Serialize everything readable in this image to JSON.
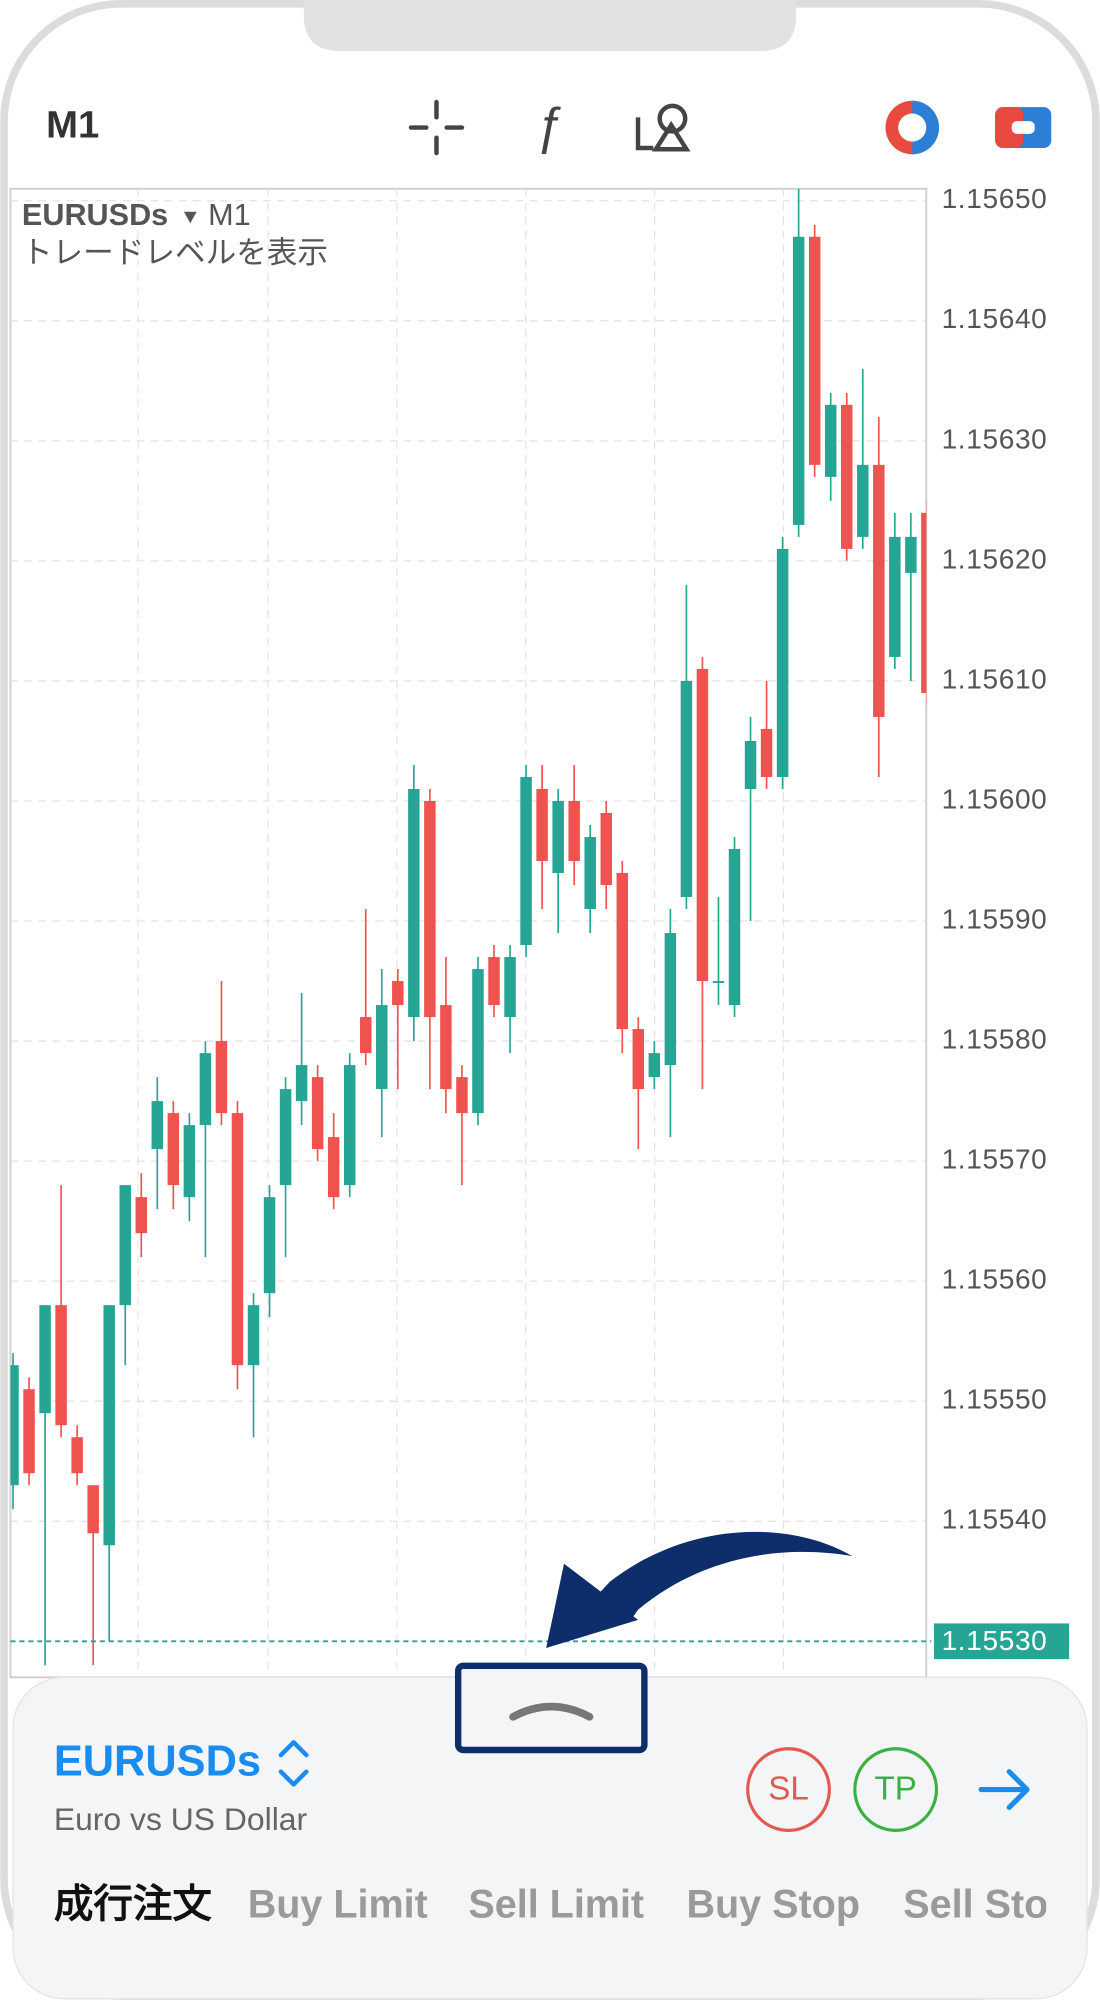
{
  "toolbar": {
    "timeframe": "M1"
  },
  "chart_header": {
    "symbol": "EURUSDs",
    "timeframe": "M1",
    "note": "トレードレベルを表示"
  },
  "chart_data": {
    "type": "candlestick",
    "open": [
      1.15543,
      1.15551,
      1.15549,
      1.15558,
      1.15547,
      1.15543,
      1.15538,
      1.15558,
      1.15567,
      1.15571,
      1.15574,
      1.15567,
      1.15573,
      1.1558,
      1.15574,
      1.15553,
      1.15559,
      1.15568,
      1.15575,
      1.15577,
      1.15572,
      1.15568,
      1.15582,
      1.15576,
      1.15585,
      1.15582,
      1.156,
      1.15583,
      1.15577,
      1.15574,
      1.15587,
      1.15582,
      1.15588,
      1.15601,
      1.15594,
      1.156,
      1.15591,
      1.15599,
      1.15594,
      1.15581,
      1.15577,
      1.15578,
      1.15592,
      1.15611,
      1.15585,
      1.15583,
      1.15601,
      1.15606,
      1.15602,
      1.15623,
      1.15647,
      1.15627,
      1.15633,
      1.15622,
      1.15628,
      1.15612,
      1.15619,
      1.15624
    ],
    "high": [
      1.15554,
      1.15552,
      1.15558,
      1.15568,
      1.15548,
      1.15543,
      1.15558,
      1.15568,
      1.15569,
      1.15577,
      1.15575,
      1.15574,
      1.1558,
      1.15585,
      1.15575,
      1.15559,
      1.15568,
      1.15577,
      1.15584,
      1.15578,
      1.15574,
      1.15579,
      1.15591,
      1.15586,
      1.15586,
      1.15603,
      1.15601,
      1.15587,
      1.15578,
      1.15587,
      1.15588,
      1.15588,
      1.15603,
      1.15603,
      1.15601,
      1.15603,
      1.15598,
      1.156,
      1.15595,
      1.15582,
      1.1558,
      1.15591,
      1.15618,
      1.15612,
      1.15592,
      1.15597,
      1.15607,
      1.1561,
      1.15622,
      1.15651,
      1.15648,
      1.15634,
      1.15634,
      1.15636,
      1.15632,
      1.15624,
      1.15624,
      1.15625
    ],
    "low": [
      1.15541,
      1.15543,
      1.15528,
      1.15547,
      1.15543,
      1.15528,
      1.1553,
      1.15553,
      1.15562,
      1.15566,
      1.15566,
      1.15565,
      1.15562,
      1.15573,
      1.15551,
      1.15547,
      1.15557,
      1.15562,
      1.15573,
      1.1557,
      1.15566,
      1.15567,
      1.15578,
      1.15572,
      1.15576,
      1.1558,
      1.15576,
      1.15574,
      1.15568,
      1.15573,
      1.15582,
      1.15579,
      1.15587,
      1.15591,
      1.15589,
      1.15593,
      1.15589,
      1.15591,
      1.15579,
      1.15571,
      1.15576,
      1.15572,
      1.15591,
      1.15576,
      1.15583,
      1.15582,
      1.1559,
      1.15601,
      1.15601,
      1.15622,
      1.15627,
      1.15625,
      1.1562,
      1.15621,
      1.15602,
      1.15611,
      1.1561,
      1.15608
    ],
    "close": [
      1.15553,
      1.15544,
      1.15558,
      1.15548,
      1.15544,
      1.15539,
      1.15558,
      1.15568,
      1.15564,
      1.15575,
      1.15568,
      1.15573,
      1.15579,
      1.15574,
      1.15553,
      1.15558,
      1.15567,
      1.15576,
      1.15578,
      1.15571,
      1.15567,
      1.15578,
      1.15579,
      1.15583,
      1.15583,
      1.15601,
      1.15582,
      1.15576,
      1.15574,
      1.15586,
      1.15583,
      1.15587,
      1.15602,
      1.15595,
      1.156,
      1.15595,
      1.15597,
      1.15593,
      1.15581,
      1.15576,
      1.15579,
      1.15589,
      1.1561,
      1.15585,
      1.15585,
      1.15596,
      1.15605,
      1.15602,
      1.15621,
      1.15647,
      1.15628,
      1.15633,
      1.15621,
      1.15628,
      1.15607,
      1.15622,
      1.15622,
      1.15609
    ],
    "up_color": "#26a594",
    "down_color": "#ef5350",
    "ylim": [
      1.15527,
      1.15651
    ],
    "yticks": [
      {
        "value": 1.1565,
        "label": "1.15650"
      },
      {
        "value": 1.1564,
        "label": "1.15640"
      },
      {
        "value": 1.1563,
        "label": "1.15630"
      },
      {
        "value": 1.1562,
        "label": "1.15620"
      },
      {
        "value": 1.1561,
        "label": "1.15610"
      },
      {
        "value": 1.156,
        "label": "1.15600"
      },
      {
        "value": 1.1559,
        "label": "1.15590"
      },
      {
        "value": 1.1558,
        "label": "1.15580"
      },
      {
        "value": 1.1557,
        "label": "1.15570"
      },
      {
        "value": 1.1556,
        "label": "1.15560"
      },
      {
        "value": 1.1555,
        "label": "1.15550"
      },
      {
        "value": 1.1554,
        "label": "1.15540"
      }
    ],
    "grid": true,
    "current_price": {
      "value": 1.1553,
      "label": "1.15530"
    },
    "current_price_color": "#26a594"
  },
  "order_panel": {
    "symbol": "EURUSDs",
    "description": "Euro vs US Dollar",
    "buttons": [
      "SL",
      "TP"
    ],
    "tabs": [
      "成行注文",
      "Buy Limit",
      "Sell Limit",
      "Buy Stop",
      "Sell Stop"
    ]
  }
}
